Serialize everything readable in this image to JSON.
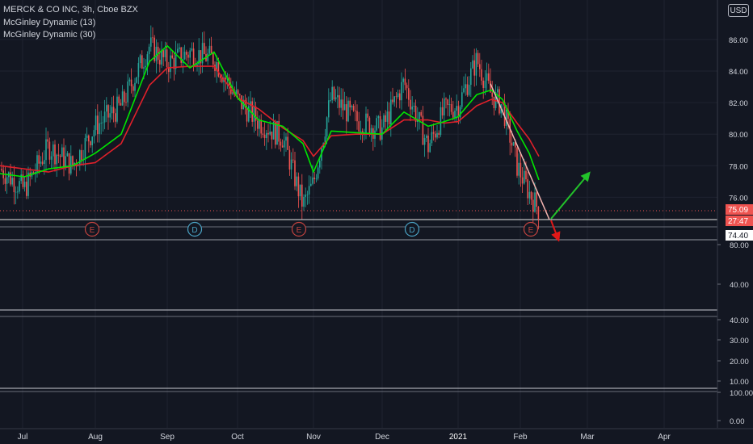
{
  "header": {
    "title": "MERCK & CO INC, 3h, Cboe BZX",
    "indicators": [
      "McGinley Dynamic (13)",
      "McGinley Dynamic (30)"
    ],
    "currency": "USD"
  },
  "colors": {
    "background": "#131722",
    "up": "#26a69a",
    "down": "#ef5350",
    "mg13": "#00e600",
    "mg30": "#e0202a",
    "grid": "#1f2330",
    "arrow_up": "#22c22a",
    "arrow_down": "#e01818",
    "trend": "#f4b4b0"
  },
  "price_labels": {
    "last": "75.09",
    "countdown": "27:47",
    "level": "74.40"
  },
  "chart_data": [
    {
      "type": "line",
      "title": "MERCK & CO INC, 3h, Cboe BZX",
      "ylim": [
        74.4,
        87.0
      ],
      "y_ticks": [
        "86.00",
        "84.00",
        "82.00",
        "80.00",
        "78.00",
        "76.00"
      ],
      "x_ticks": [
        "Jul",
        "Aug",
        "Sep",
        "Oct",
        "Nov",
        "Dec",
        "2021",
        "Feb",
        "Mar",
        "Apr"
      ],
      "x": [
        "Jul",
        "Aug",
        "Sep",
        "Oct",
        "Nov",
        "Dec",
        "2021",
        "Feb"
      ],
      "series": [
        {
          "name": "McGinley Dynamic (13)",
          "values": [
            77.6,
            79.3,
            85.6,
            81.8,
            77.5,
            80.2,
            81.5,
            77.2
          ]
        },
        {
          "name": "McGinley Dynamic (30)",
          "values": [
            77.9,
            78.6,
            84.2,
            82.0,
            79.0,
            80.0,
            80.6,
            78.6
          ]
        }
      ],
      "price": [
        77.0,
        81.0,
        86.0,
        81.0,
        75.5,
        83.5,
        82.5,
        75.1
      ],
      "events": [
        "E",
        "D",
        "E",
        "D",
        "E"
      ],
      "projection": {
        "up": "bullish arrow",
        "down": "bearish arrow"
      }
    },
    {
      "type": "line",
      "y_ticks": [
        "80.00",
        "40.00"
      ]
    },
    {
      "type": "line",
      "y_ticks": [
        "40.00",
        "30.00",
        "20.00",
        "10.00"
      ]
    },
    {
      "type": "line",
      "y_ticks": [
        "100.00",
        "0.00"
      ]
    }
  ]
}
